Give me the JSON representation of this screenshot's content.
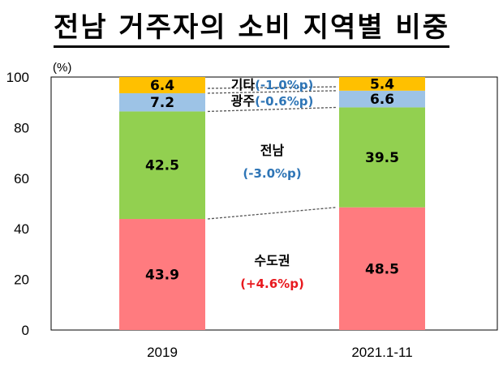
{
  "title": "전남 거주자의 소비 지역별 비중",
  "chart_data": {
    "type": "bar",
    "stacked": true,
    "unit": "(%)",
    "categories": [
      "2019",
      "2021.1-11"
    ],
    "ylim": [
      0,
      100
    ],
    "yticks": [
      0,
      20,
      40,
      60,
      80,
      100
    ],
    "series": [
      {
        "name": "수도권",
        "values": [
          43.9,
          48.5
        ],
        "color": "#FF7B7F"
      },
      {
        "name": "전남",
        "values": [
          42.5,
          39.5
        ],
        "color": "#92D050"
      },
      {
        "name": "광주",
        "values": [
          7.2,
          6.6
        ],
        "color": "#9DC3E6"
      },
      {
        "name": "기타",
        "values": [
          6.4,
          5.4
        ],
        "color": "#FFC000"
      }
    ],
    "annotations": [
      {
        "series": "수도권",
        "name": "수도권",
        "delta": "(+4.6%p)",
        "delta_color": "#E8191E"
      },
      {
        "series": "전남",
        "name": "전남",
        "delta": "(-3.0%p)",
        "delta_color": "#2E75B6"
      },
      {
        "series": "광주",
        "name": "광주",
        "delta": "(-0.6%p)",
        "delta_color": "#2E75B6"
      },
      {
        "series": "기타",
        "name": "기타",
        "delta": "(-1.0%p)",
        "delta_color": "#2E75B6"
      }
    ]
  }
}
